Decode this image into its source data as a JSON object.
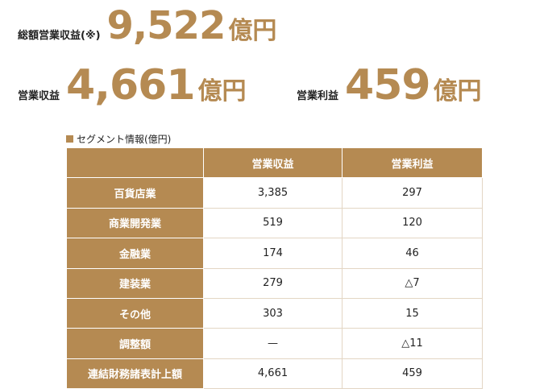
{
  "summary": {
    "total": {
      "label": "総額営業収益(※)",
      "value": "9,522",
      "unit": "億円"
    },
    "revenue": {
      "label": "営業収益",
      "value": "4,661",
      "unit": "億円"
    },
    "operating_profit": {
      "label": "営業利益",
      "value": "459",
      "unit": "億円"
    }
  },
  "segment": {
    "title": "セグメント情報(億円)",
    "headers": [
      "",
      "営業収益",
      "営業利益"
    ],
    "rows": [
      {
        "name": "百貨店業",
        "revenue": "3,385",
        "profit": "297"
      },
      {
        "name": "商業開発業",
        "revenue": "519",
        "profit": "120"
      },
      {
        "name": "金融業",
        "revenue": "174",
        "profit": "46"
      },
      {
        "name": "建装業",
        "revenue": "279",
        "profit": "△7"
      },
      {
        "name": "その他",
        "revenue": "303",
        "profit": "15"
      },
      {
        "name": "調整額",
        "revenue": "—",
        "profit": "△11"
      },
      {
        "name": "連結財務諸表計上額",
        "revenue": "4,661",
        "profit": "459"
      }
    ]
  },
  "colors": {
    "accent": "#B58A52"
  }
}
